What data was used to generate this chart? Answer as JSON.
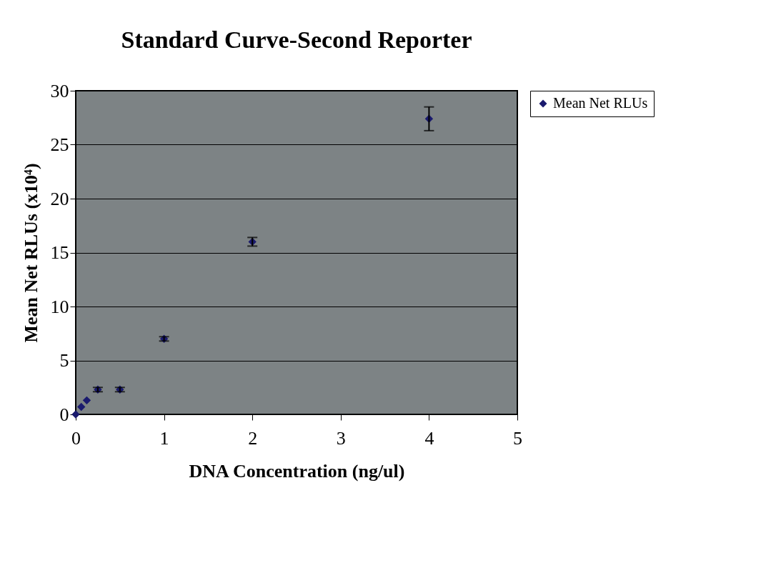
{
  "chart_data": {
    "type": "scatter",
    "title": "Standard Curve-Second Reporter",
    "xlabel": "DNA Concentration (ng/ul)",
    "ylabel": "Mean Net RLUs (x10⁴)",
    "x": [
      0,
      0.0625,
      0.125,
      0.25,
      0.5,
      1,
      2,
      4
    ],
    "series": [
      {
        "name": "Mean Net RLUs",
        "color": "#1a1a6e",
        "values": [
          0,
          0.7,
          1.3,
          2.3,
          2.3,
          7.0,
          16.0,
          27.4
        ],
        "errors": [
          null,
          null,
          null,
          0.2,
          0.2,
          0.2,
          0.4,
          1.1
        ]
      }
    ],
    "xlim": [
      0,
      5
    ],
    "xticks": [
      0,
      1,
      2,
      3,
      4,
      5
    ],
    "ylim": [
      0,
      30
    ],
    "yticks": [
      0,
      5,
      10,
      15,
      20,
      25,
      30
    ],
    "grid": "y",
    "legend": "right",
    "marker": "diamond"
  }
}
